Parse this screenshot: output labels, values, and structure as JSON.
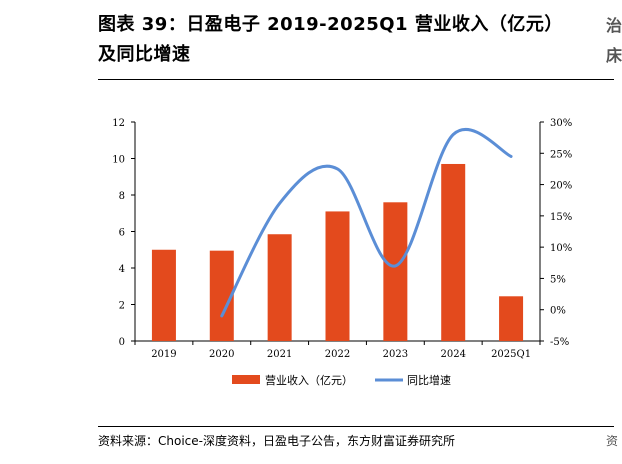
{
  "title": {
    "line1": "图表 39：日盈电子 2019-2025Q1 营业收入（亿元）",
    "line2": "及同比增速"
  },
  "edge_fragments": [
    "治",
    "床",
    "资"
  ],
  "source": "资料来源：Choice-深度资料，日盈电子公告，东方财富证券研究所",
  "colors": {
    "bar": "#E34A1D",
    "line": "#5B8ED6",
    "axis": "#000000"
  },
  "chart_data": {
    "type": "bar",
    "categories": [
      "2019",
      "2020",
      "2021",
      "2022",
      "2023",
      "2024",
      "2025Q1"
    ],
    "series": [
      {
        "name": "营业收入（亿元）",
        "type": "bar",
        "axis": "left",
        "values": [
          5.0,
          4.95,
          5.85,
          7.1,
          7.6,
          9.7,
          2.45
        ]
      },
      {
        "name": "同比增速",
        "type": "line",
        "axis": "right",
        "smooth": true,
        "values": [
          null,
          -0.01,
          0.17,
          0.225,
          0.07,
          0.28,
          0.245
        ]
      }
    ],
    "y_left": {
      "ticks": [
        "0",
        "2",
        "4",
        "6",
        "8",
        "10",
        "12"
      ],
      "ylim": [
        0,
        12
      ]
    },
    "y_right": {
      "ticks": [
        "-5%",
        "0%",
        "5%",
        "10%",
        "15%",
        "20%",
        "25%",
        "30%"
      ],
      "ylim": [
        -0.05,
        0.3
      ]
    },
    "legend": {
      "position": "bottom",
      "items": [
        "营业收入（亿元）",
        "同比增速"
      ]
    },
    "grid": false
  }
}
